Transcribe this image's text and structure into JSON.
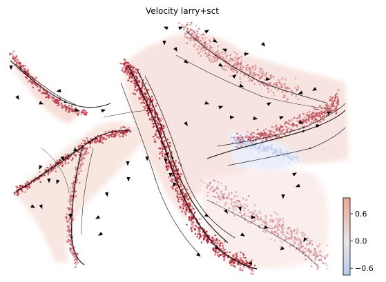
{
  "chart_data": {
    "type": "scatter",
    "title": "Velocity larry+sct",
    "xlabel": "",
    "ylabel": "",
    "axes_visible": false,
    "grid": false,
    "overlay": "velocity streamlines with arrowheads",
    "colormap": {
      "name": "coolwarm",
      "low_color": "#b0c4f0",
      "mid_color": "#e8e0e0",
      "high_color": "#b2182b",
      "range": [
        -0.75,
        0.95
      ],
      "ticks": [
        0.6,
        0.0,
        -0.6
      ],
      "tick_labels": [
        "0.6",
        "0.0",
        "−0.6"
      ],
      "placement": "bottom-right"
    },
    "regions": [
      {
        "name": "upper-left arm",
        "value": 0.85
      },
      {
        "name": "lower-left arm",
        "value": 0.9
      },
      {
        "name": "left spur",
        "value": 0.6
      },
      {
        "name": "central band",
        "value": 0.95
      },
      {
        "name": "upper-center fan",
        "value": 0.5
      },
      {
        "name": "right arm",
        "value": 0.7
      },
      {
        "name": "right low-velocity zone",
        "value": -0.5
      },
      {
        "name": "bottom-right lobe",
        "value": 0.4
      }
    ]
  }
}
